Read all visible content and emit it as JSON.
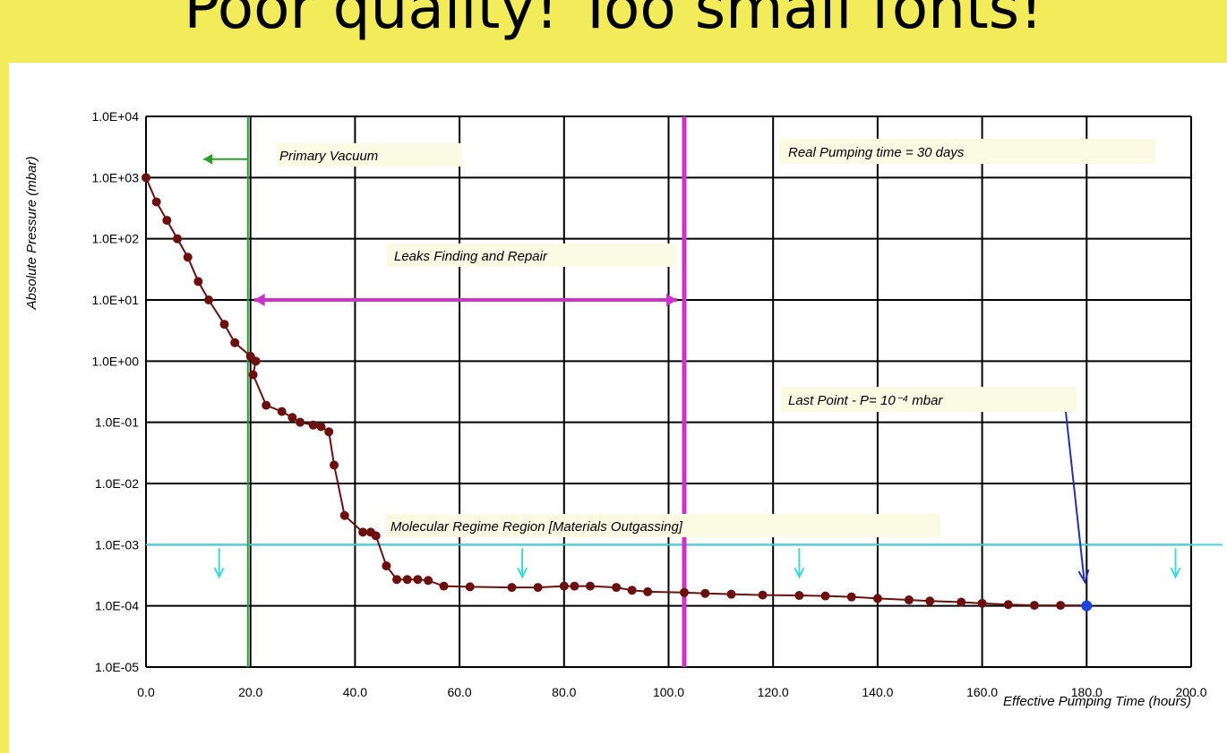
{
  "headline": "Poor quality! Too small fonts!",
  "chart_data": {
    "type": "line",
    "title": "",
    "xlabel": "Effective Pumping Time (hours)",
    "ylabel": "Absolute Pressure (mbar)",
    "y_log_scale": true,
    "xlim": [
      0,
      200
    ],
    "ylim": [
      1e-05,
      10000
    ],
    "grid": true,
    "x_ticks": [
      "0.0",
      "20.0",
      "40.0",
      "60.0",
      "80.0",
      "100.0",
      "120.0",
      "140.0",
      "160.0",
      "180.0",
      "200.0"
    ],
    "y_ticks": [
      "1.0E-05",
      "1.0E-04",
      "1.0E-03",
      "1.0E-02",
      "1.0E-01",
      "1.0E+00",
      "1.0E+01",
      "1.0E+02",
      "1.0E+03",
      "1.0E+04"
    ],
    "series": [
      {
        "color": "#6b0f0f",
        "x": [
          0,
          2,
          4,
          6,
          8,
          10,
          12,
          15,
          17,
          20,
          21,
          20.5,
          23,
          26,
          28,
          29.5,
          32,
          33.5,
          35,
          36,
          38,
          41.5,
          43,
          44,
          46,
          48,
          50,
          52,
          54,
          57,
          62,
          70,
          75,
          80,
          82,
          85,
          90,
          93,
          96,
          103,
          107,
          112,
          118,
          125,
          130,
          135,
          140,
          146,
          150,
          156,
          160,
          165,
          170,
          175,
          180
        ],
        "y": [
          1000,
          400,
          200,
          100,
          50,
          20,
          10,
          4,
          2,
          1.2,
          1,
          0.6,
          0.19,
          0.15,
          0.12,
          0.1,
          0.09,
          0.085,
          0.07,
          0.02,
          0.003,
          0.0016,
          0.0016,
          0.0014,
          0.00045,
          0.00027,
          0.00027,
          0.00027,
          0.00026,
          0.00021,
          0.000205,
          0.0002,
          0.0002,
          0.00021,
          0.00021,
          0.00021,
          0.0002,
          0.00018,
          0.00017,
          0.000165,
          0.00016,
          0.000155,
          0.00015,
          0.000148,
          0.000145,
          0.00014,
          0.000132,
          0.000125,
          0.00012,
          0.000115,
          0.00011,
          0.000105,
          0.000102,
          0.000102,
          0.000102
        ]
      }
    ],
    "annotations": {
      "primary_vacuum": "Primary Vacuum",
      "leaks": "Leaks Finding and Repair",
      "real_time": "Real Pumping time = 30 days",
      "last_point": "Last Point - P= 10⁻⁴ mbar",
      "molecular": "Molecular Regime Region [Materials Outgassing]"
    },
    "reference_lines": {
      "primary_vacuum_x": 19.5,
      "leaks_start_x": 20,
      "leaks_end_x": 103,
      "real_time_x": 103,
      "molecular_y": 0.001,
      "last_point_x": 180,
      "last_point_y": 0.0001
    },
    "colors": {
      "data": "#6b0f0f",
      "primary": "#2aa02a",
      "leaks": "#cc33cc",
      "molecular": "#40d8e0",
      "last_point": "#2233aa",
      "last_point_marker": "#2244dd"
    }
  }
}
